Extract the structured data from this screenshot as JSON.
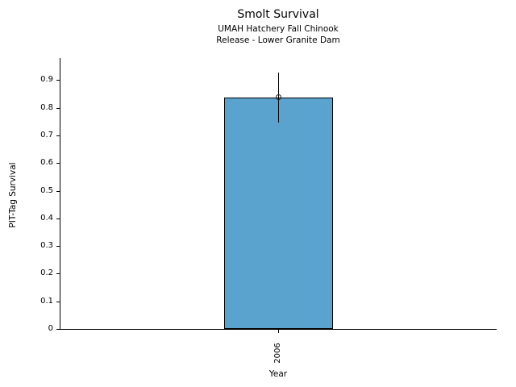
{
  "title": "Smolt Survival",
  "subtitle_line1": "UMAH Hatchery Fall Chinook",
  "subtitle_line2": "Release - Lower Granite Dam",
  "chart_data": {
    "type": "bar",
    "categories": [
      "2006"
    ],
    "values": [
      0.838
    ],
    "error_low": [
      0.748
    ],
    "error_high": [
      0.928
    ],
    "title": "Smolt Survival",
    "subtitle": [
      "UMAH Hatchery Fall Chinook",
      "Release - Lower Granite Dam"
    ],
    "xlabel": "Year",
    "ylabel": "PIT-Tag Survival",
    "ylim": [
      0,
      0.98
    ],
    "yticks": [
      0,
      0.1,
      0.2,
      0.3,
      0.4,
      0.5,
      0.6,
      0.7,
      0.8,
      0.9
    ],
    "ytick_labels": [
      "0",
      "0.1",
      "0.2",
      "0.3",
      "0.4",
      "0.5",
      "0.6",
      "0.7",
      "0.8",
      "0.9"
    ],
    "bar_color": "#5ba3cf",
    "bar_edge_color": "#000000",
    "marker": "open-circle-at-bar-top",
    "grid": false,
    "legend": false
  }
}
